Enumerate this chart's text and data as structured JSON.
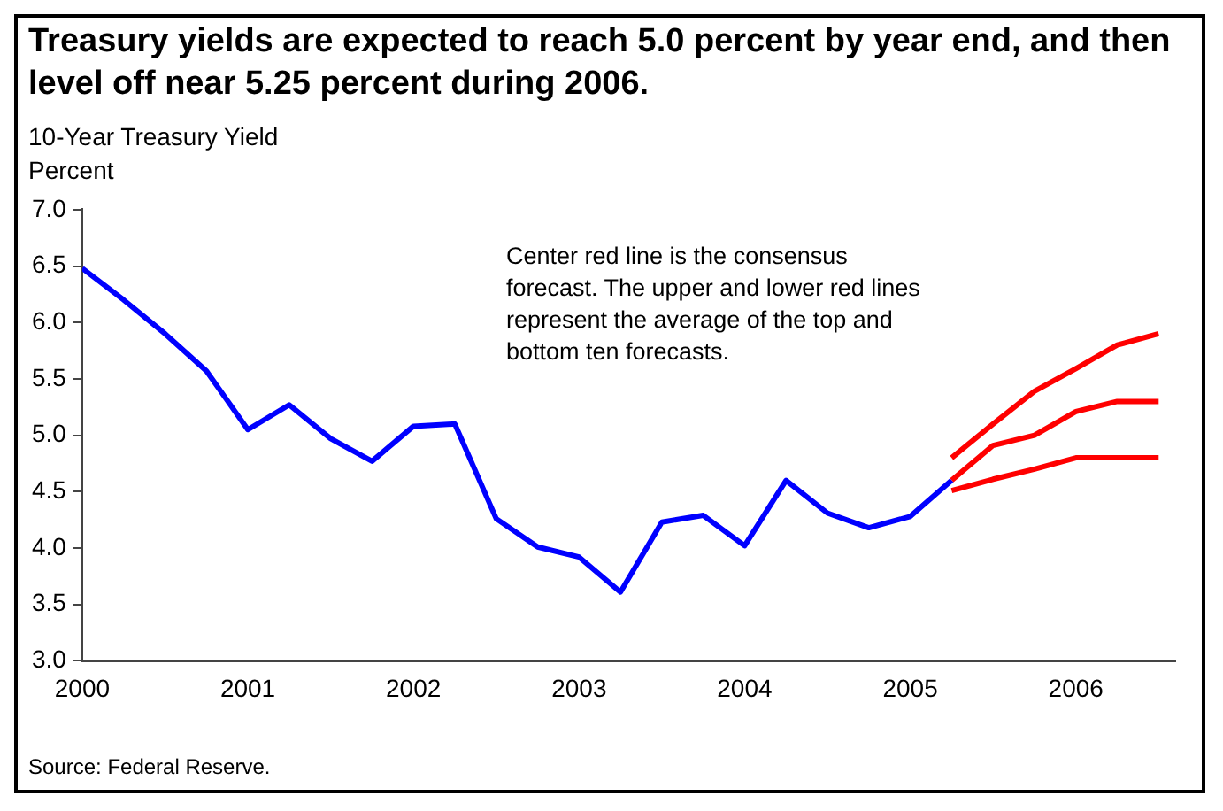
{
  "chart_data": {
    "type": "line",
    "title": "Treasury yields are expected to reach 5.0 percent by year end, and then level off near 5.25 percent during 2006.",
    "ylabel": "10-Year Treasury Yield\nPercent",
    "annotations": [
      "Center red line is the consensus forecast. The upper and lower red lines represent the average of the top and bottom ten forecasts.",
      "Source: Federal Reserve."
    ],
    "series": [
      {
        "color": "#0000ff",
        "x": [
          2000,
          2000.25,
          2000.5,
          2000.75,
          2001,
          2001.25,
          2001.5,
          2001.75,
          2002,
          2002.25,
          2002.5,
          2002.75,
          2003,
          2003.25,
          2003.5,
          2003.75,
          2004,
          2004.25,
          2004.5,
          2004.75,
          2005,
          2005.25
        ],
        "values": [
          6.48,
          6.2,
          5.9,
          5.57,
          5.05,
          5.27,
          4.97,
          4.77,
          5.08,
          5.1,
          4.26,
          4.01,
          3.92,
          3.61,
          4.23,
          4.29,
          4.02,
          4.6,
          4.31,
          4.18,
          4.28,
          4.6
        ]
      },
      {
        "color": "#ff0000",
        "x": [
          2005.25,
          2005.5,
          2005.75,
          2006,
          2006.25,
          2006.5
        ],
        "values": [
          4.8,
          5.1,
          5.39,
          5.59,
          5.8,
          5.9
        ]
      },
      {
        "color": "#ff0000",
        "x": [
          2005.25,
          2005.5,
          2005.75,
          2006,
          2006.25,
          2006.5
        ],
        "values": [
          4.6,
          4.91,
          5.0,
          5.21,
          5.3,
          5.3
        ]
      },
      {
        "color": "#ff0000",
        "x": [
          2005.25,
          2005.5,
          2005.75,
          2006,
          2006.25,
          2006.5
        ],
        "values": [
          4.51,
          4.61,
          4.7,
          4.8,
          4.8,
          4.8
        ]
      }
    ],
    "xlim": [
      2000,
      2006.6
    ],
    "xticks": [
      2000,
      2001,
      2002,
      2003,
      2004,
      2005,
      2006
    ],
    "ylim": [
      3,
      7
    ],
    "yticks": [
      {
        "value": 3,
        "label": "3.0"
      },
      {
        "value": 3.5,
        "label": "3.5"
      },
      {
        "value": 4,
        "label": "4.0"
      },
      {
        "value": 4.5,
        "label": "4.5"
      },
      {
        "value": 5,
        "label": "5.0"
      },
      {
        "value": 5.5,
        "label": "5.5"
      },
      {
        "value": 6,
        "label": "6.0"
      },
      {
        "value": 6.5,
        "label": "6.5"
      },
      {
        "value": 7,
        "label": "7.0"
      }
    ],
    "grid": false,
    "legend": false,
    "marker": "none",
    "line_style": "solid"
  }
}
